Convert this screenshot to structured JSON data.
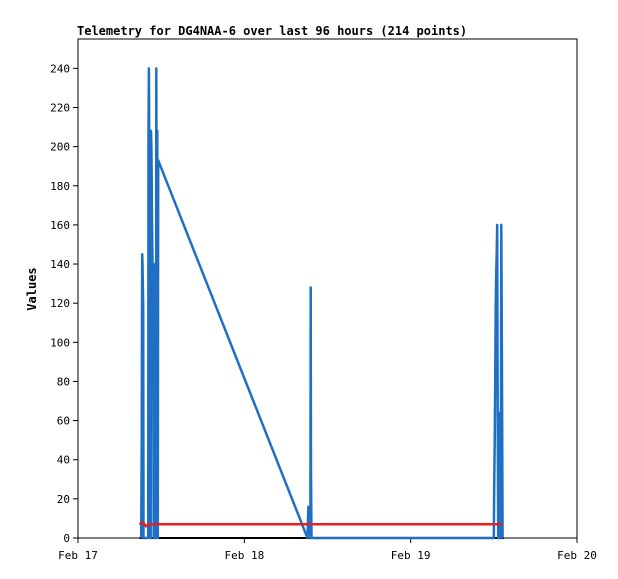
{
  "chart_data": {
    "type": "line",
    "title": "Telemetry for DG4NAA-6 over last 96 hours (214 points)",
    "ylabel": "Values",
    "xlabel": "",
    "x_ticks": [
      "Feb 17",
      "Feb 18",
      "Feb 19",
      "Feb 20"
    ],
    "x_range": [
      "Feb 17",
      "Feb 20"
    ],
    "ylim": [
      0,
      255
    ],
    "y_ticks": [
      0,
      20,
      40,
      60,
      80,
      100,
      120,
      140,
      160,
      180,
      200,
      220,
      240
    ],
    "grid": false,
    "legend": "none",
    "series": [
      {
        "color": "#1f6fc5",
        "points": [
          [
            0.38,
            0
          ],
          [
            0.383,
            48
          ],
          [
            0.384,
            97
          ],
          [
            0.386,
            145
          ],
          [
            0.388,
            140
          ],
          [
            0.39,
            128
          ],
          [
            0.392,
            118
          ],
          [
            0.394,
            0
          ],
          [
            0.41,
            0
          ],
          [
            0.413,
            0
          ],
          [
            0.422,
            0
          ],
          [
            0.424,
            208
          ],
          [
            0.426,
            240
          ],
          [
            0.428,
            208
          ],
          [
            0.43,
            17
          ],
          [
            0.432,
            0
          ],
          [
            0.437,
            0
          ],
          [
            0.439,
            208
          ],
          [
            0.441,
            199
          ],
          [
            0.443,
            182
          ],
          [
            0.445,
            162
          ],
          [
            0.447,
            145
          ],
          [
            0.449,
            128
          ],
          [
            0.451,
            105
          ],
          [
            0.453,
            80
          ],
          [
            0.455,
            0
          ],
          [
            0.462,
            0
          ],
          [
            0.463,
            140
          ],
          [
            0.465,
            0
          ],
          [
            0.469,
            0
          ],
          [
            0.471,
            240
          ],
          [
            0.473,
            145
          ],
          [
            0.475,
            128
          ],
          [
            0.477,
            208
          ],
          [
            0.48,
            0
          ],
          [
            0.482,
            193
          ],
          [
            1.38,
            0
          ],
          [
            1.385,
            16
          ],
          [
            1.39,
            14
          ],
          [
            1.393,
            8
          ],
          [
            1.397,
            0
          ],
          [
            1.399,
            128
          ],
          [
            1.401,
            33
          ],
          [
            1.404,
            0
          ],
          [
            2.5,
            0
          ],
          [
            2.502,
            27
          ],
          [
            2.505,
            48
          ],
          [
            2.508,
            80
          ],
          [
            2.511,
            118
          ],
          [
            2.514,
            135
          ],
          [
            2.517,
            145
          ],
          [
            2.52,
            160
          ],
          [
            2.523,
            64
          ],
          [
            2.526,
            0
          ],
          [
            2.532,
            0
          ],
          [
            2.535,
            64
          ],
          [
            2.538,
            0
          ],
          [
            2.542,
            0
          ],
          [
            2.545,
            160
          ],
          [
            2.549,
            80
          ],
          [
            2.553,
            0
          ]
        ]
      },
      {
        "color": "#e62020",
        "points": [
          [
            0.37,
            7
          ],
          [
            0.39,
            8
          ],
          [
            0.41,
            6
          ],
          [
            0.43,
            7
          ],
          [
            0.5,
            7
          ],
          [
            1.0,
            7
          ],
          [
            1.5,
            7
          ],
          [
            2.0,
            7
          ],
          [
            2.5,
            7
          ],
          [
            2.55,
            7
          ]
        ]
      }
    ]
  }
}
